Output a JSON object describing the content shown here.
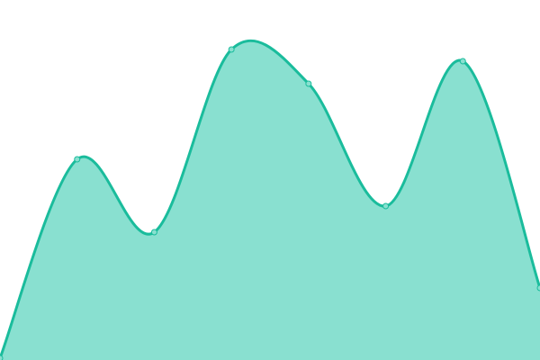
{
  "chart_data": {
    "type": "area",
    "x": [
      0,
      1,
      2,
      3,
      4,
      5,
      6,
      7
    ],
    "series": [
      {
        "values": [
          2,
          223,
          142,
          345,
          307,
          171,
          332,
          80
        ]
      }
    ],
    "ylim": [
      0,
      400
    ],
    "grid": false,
    "axes_visible": false,
    "curve": "smooth",
    "colors": {
      "line": "#1abc9c",
      "fill": "#89e0d0",
      "point_fill": "#89e0d0"
    }
  }
}
